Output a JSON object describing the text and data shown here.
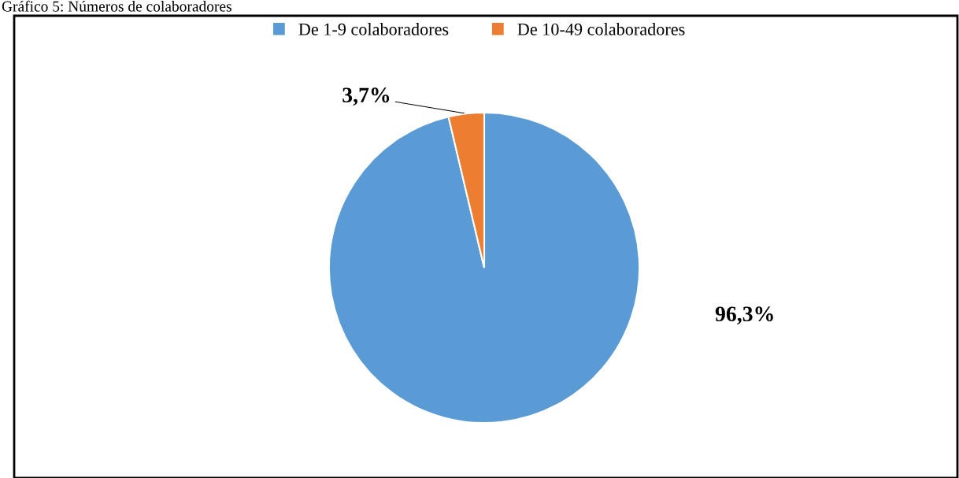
{
  "chart_data": {
    "type": "pie",
    "title": "Gráfico 5: Números de colaboradores",
    "categories": [
      "De 1-9 colaboradores",
      "De 10-49 colaboradores"
    ],
    "values": [
      96.3,
      3.7
    ],
    "colors": [
      "#5b9bd5",
      "#ed7d31"
    ],
    "value_labels": [
      "96,3%",
      "3,7%"
    ],
    "legend": "top"
  }
}
